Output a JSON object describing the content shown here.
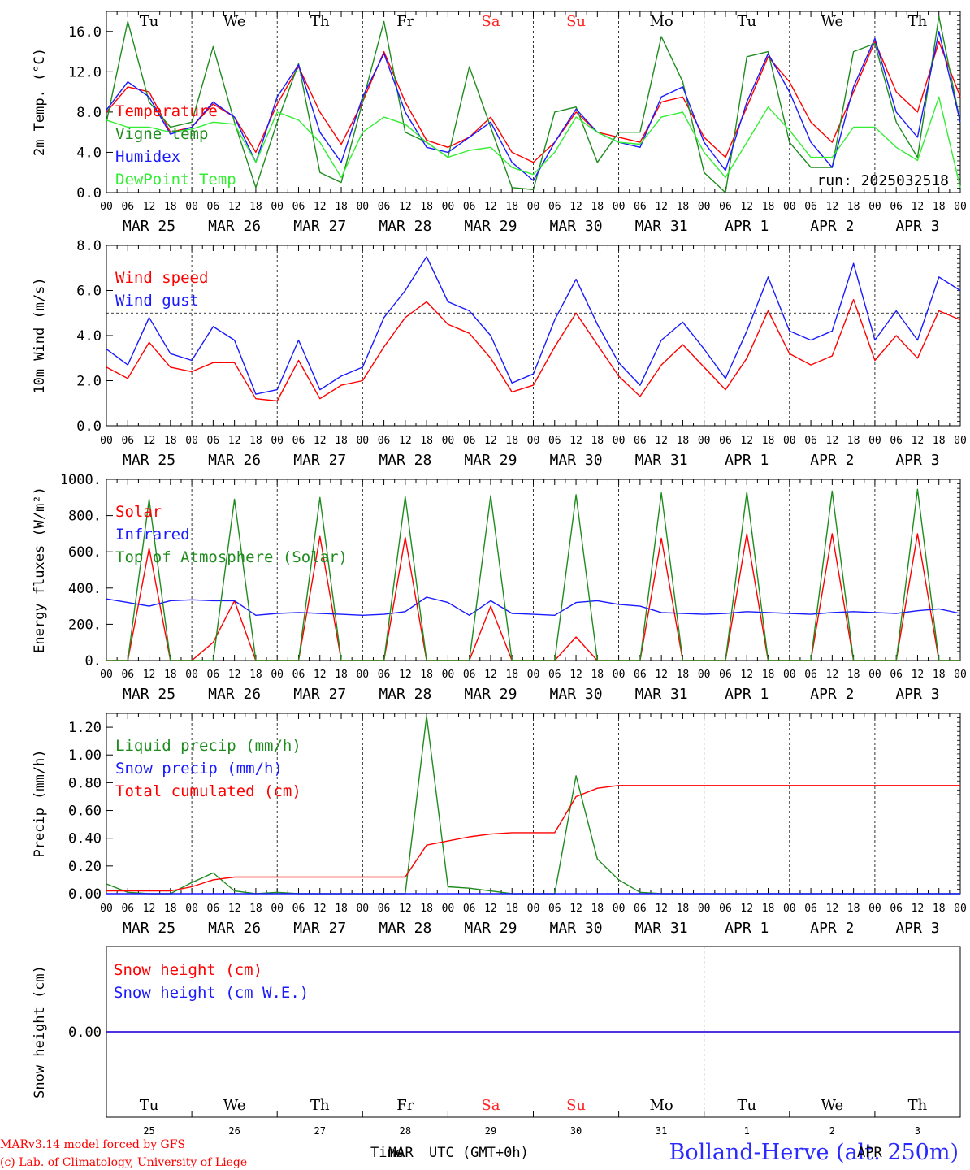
{
  "footer": {
    "model_line": "MARv3.14 model forced by GFS",
    "lab_line": "(c) Lab. of Climatology, University of Liege",
    "x_title_a": "Time",
    "x_title_b": "MAR",
    "x_title_c": "UTC (GMT+0h)",
    "station": "Bolland-Herve (alt. 250m)",
    "apr_overlay": "APR"
  },
  "timeline": {
    "hour_ticks": [
      "00",
      "06",
      "12",
      "18"
    ],
    "dates": [
      "MAR 25",
      "MAR 26",
      "MAR 27",
      "MAR 28",
      "MAR 29",
      "MAR 30",
      "MAR 31",
      "APR  1",
      "APR  2",
      "APR  3"
    ],
    "day_numbers": [
      "25",
      "26",
      "27",
      "28",
      "29",
      "30",
      "31",
      "1",
      "2",
      "3"
    ],
    "weekdays": [
      "Tu",
      "We",
      "Th",
      "Fr",
      "Sa",
      "Su",
      "Mo",
      "Tu",
      "We",
      "Th"
    ],
    "weekend_color": "#ff2020",
    "weekday_color": "#000000",
    "weekend_days": [
      "Sa",
      "Su"
    ]
  },
  "chart_data": [
    {
      "id": "temp",
      "type": "line",
      "ylabel": "2m Temp. (°C)",
      "ylim": [
        0,
        18
      ],
      "yticks": [
        "0.0",
        "4.0",
        "8.0",
        "12.0",
        "16.0"
      ],
      "annotation": "run: 2025032518",
      "x_hours": [
        0,
        6,
        12,
        18,
        24,
        30,
        36,
        42,
        48,
        54,
        60,
        66,
        72,
        78,
        84,
        90,
        96,
        102,
        108,
        114,
        120,
        126,
        132,
        138,
        144,
        150,
        156,
        162,
        168,
        174,
        180,
        186,
        192,
        198,
        204,
        210,
        216,
        222,
        228,
        234,
        240
      ],
      "series": [
        {
          "name": "Temperature",
          "color": "#ff0000",
          "values": [
            8.0,
            10.5,
            10.0,
            6.0,
            6.5,
            8.8,
            7.5,
            4.0,
            8.8,
            12.5,
            8.0,
            4.8,
            9.0,
            14.0,
            9.0,
            5.2,
            4.5,
            5.5,
            7.5,
            4.0,
            3.0,
            5.0,
            8.0,
            6.0,
            5.5,
            5.0,
            9.0,
            9.5,
            5.5,
            3.5,
            8.5,
            13.5,
            11.0,
            7.0,
            5.0,
            10.0,
            15.0,
            10.0,
            8.0,
            15.0,
            9.5
          ]
        },
        {
          "name": "Vigne temp",
          "color": "#1e8c1e",
          "values": [
            7.0,
            17.0,
            9.0,
            6.5,
            7.0,
            14.5,
            7.0,
            0.5,
            7.0,
            12.8,
            2.0,
            1.0,
            9.0,
            17.0,
            6.0,
            5.0,
            3.5,
            12.5,
            6.5,
            0.5,
            0.3,
            8.0,
            8.5,
            3.0,
            6.0,
            6.0,
            15.5,
            11.0,
            2.0,
            0.0,
            13.5,
            14.0,
            5.0,
            2.5,
            2.5,
            14.0,
            14.8,
            7.0,
            3.5,
            17.5,
            7.0
          ]
        },
        {
          "name": "Humidex",
          "color": "#1a1aff",
          "values": [
            8.2,
            11.0,
            9.5,
            5.8,
            6.5,
            9.0,
            7.5,
            3.0,
            9.5,
            12.7,
            6.0,
            3.0,
            9.5,
            13.8,
            8.0,
            4.5,
            4.0,
            5.5,
            7.0,
            3.0,
            1.2,
            5.0,
            8.3,
            6.0,
            5.0,
            4.5,
            9.5,
            10.5,
            5.0,
            2.2,
            9.0,
            13.8,
            10.0,
            5.0,
            2.5,
            10.5,
            15.3,
            8.0,
            5.5,
            16.0,
            7.0
          ]
        },
        {
          "name": "DewPoint Temp",
          "color": "#33ee33",
          "values": [
            7.2,
            6.5,
            6.5,
            6.0,
            6.3,
            7.0,
            6.8,
            3.0,
            8.0,
            7.2,
            5.0,
            1.5,
            6.0,
            7.5,
            6.8,
            5.0,
            3.5,
            4.2,
            4.5,
            2.5,
            1.8,
            4.0,
            7.5,
            6.0,
            5.0,
            4.8,
            7.5,
            8.0,
            4.0,
            1.5,
            5.0,
            8.5,
            6.2,
            3.5,
            3.5,
            6.5,
            6.5,
            4.5,
            3.2,
            9.5,
            0.5
          ]
        }
      ]
    },
    {
      "id": "wind",
      "type": "line",
      "ylabel": "10m Wind (m/s)",
      "ylim": [
        0,
        8
      ],
      "yticks": [
        "0.0",
        "2.0",
        "4.0",
        "6.0",
        "8.0"
      ],
      "reference_line": 5.0,
      "x_hours": [
        0,
        6,
        12,
        18,
        24,
        30,
        36,
        42,
        48,
        54,
        60,
        66,
        72,
        78,
        84,
        90,
        96,
        102,
        108,
        114,
        120,
        126,
        132,
        138,
        144,
        150,
        156,
        162,
        168,
        174,
        180,
        186,
        192,
        198,
        204,
        210,
        216,
        222,
        228,
        234,
        240
      ],
      "series": [
        {
          "name": "Wind speed",
          "color": "#ff0000",
          "values": [
            2.6,
            2.1,
            3.7,
            2.6,
            2.4,
            2.8,
            2.8,
            1.2,
            1.1,
            2.9,
            1.2,
            1.8,
            2.0,
            3.5,
            4.8,
            5.5,
            4.5,
            4.1,
            3.0,
            1.5,
            1.8,
            3.5,
            5.0,
            3.6,
            2.2,
            1.3,
            2.7,
            3.6,
            2.6,
            1.6,
            3.0,
            5.1,
            3.2,
            2.7,
            3.1,
            5.6,
            2.9,
            4.0,
            3.0,
            5.1,
            4.7
          ]
        },
        {
          "name": "Wind gust",
          "color": "#1a1aff",
          "values": [
            3.4,
            2.7,
            4.8,
            3.2,
            2.9,
            4.4,
            3.8,
            1.4,
            1.6,
            3.8,
            1.6,
            2.2,
            2.6,
            4.8,
            6.0,
            7.5,
            5.5,
            5.1,
            4.0,
            1.9,
            2.3,
            4.7,
            6.5,
            4.5,
            2.8,
            1.8,
            3.8,
            4.6,
            3.4,
            2.1,
            4.2,
            6.6,
            4.2,
            3.8,
            4.2,
            7.2,
            3.8,
            5.1,
            3.8,
            6.6,
            6.0
          ]
        }
      ]
    },
    {
      "id": "energy",
      "type": "line",
      "ylabel": "Energy fluxes (W/m²)",
      "ylim": [
        0,
        1000
      ],
      "yticks": [
        "0.",
        "200.",
        "400.",
        "600.",
        "800.",
        "1000."
      ],
      "x_hours": [
        0,
        6,
        12,
        18,
        24,
        30,
        36,
        42,
        48,
        54,
        60,
        66,
        72,
        78,
        84,
        90,
        96,
        102,
        108,
        114,
        120,
        126,
        132,
        138,
        144,
        150,
        156,
        162,
        168,
        174,
        180,
        186,
        192,
        198,
        204,
        210,
        216,
        222,
        228,
        234,
        240
      ],
      "series": [
        {
          "name": "Solar",
          "color": "#ff0000",
          "values": [
            0,
            0,
            620,
            0,
            0,
            100,
            330,
            0,
            0,
            0,
            685,
            0,
            0,
            0,
            680,
            0,
            0,
            0,
            300,
            0,
            0,
            0,
            130,
            0,
            0,
            0,
            675,
            0,
            0,
            0,
            700,
            0,
            0,
            0,
            700,
            0,
            0,
            0,
            700,
            0,
            0
          ]
        },
        {
          "name": "Infrared",
          "color": "#1a1aff",
          "values": [
            340,
            320,
            300,
            330,
            335,
            330,
            330,
            250,
            260,
            265,
            260,
            255,
            250,
            255,
            270,
            350,
            320,
            250,
            330,
            260,
            255,
            250,
            320,
            330,
            310,
            300,
            265,
            260,
            255,
            260,
            270,
            265,
            260,
            255,
            265,
            270,
            265,
            260,
            275,
            285,
            260
          ]
        },
        {
          "name": "Top of Atmosphere (Solar)",
          "color": "#1e8c1e",
          "values": [
            0,
            0,
            890,
            0,
            0,
            0,
            890,
            0,
            0,
            0,
            900,
            0,
            0,
            0,
            905,
            0,
            0,
            0,
            910,
            0,
            0,
            0,
            915,
            0,
            0,
            0,
            925,
            0,
            0,
            0,
            930,
            0,
            0,
            0,
            935,
            0,
            0,
            0,
            945,
            0,
            0
          ]
        }
      ]
    },
    {
      "id": "precip",
      "type": "line",
      "ylabel": "Precip (mm/h)",
      "ylim": [
        0,
        1.3
      ],
      "yticks": [
        "0.00",
        "0.20",
        "0.40",
        "0.60",
        "0.80",
        "1.00",
        "1.20"
      ],
      "x_hours": [
        0,
        6,
        12,
        18,
        24,
        30,
        36,
        42,
        48,
        54,
        60,
        66,
        72,
        78,
        84,
        90,
        96,
        102,
        108,
        114,
        120,
        126,
        132,
        138,
        144,
        150,
        156,
        162,
        168,
        174,
        180,
        186,
        192,
        198,
        204,
        210,
        216,
        222,
        228,
        234,
        240
      ],
      "series": [
        {
          "name": "Liquid precip (mm/h)",
          "color": "#1e8c1e",
          "values": [
            0.07,
            0.01,
            0.0,
            0.0,
            0.08,
            0.15,
            0.02,
            0.0,
            0.01,
            0.0,
            0.0,
            0.0,
            0.0,
            0.0,
            0.0,
            1.28,
            0.05,
            0.04,
            0.02,
            0.0,
            0.0,
            0.0,
            0.85,
            0.25,
            0.1,
            0.01,
            0.0,
            0.0,
            0.0,
            0.0,
            0.0,
            0.0,
            0.0,
            0.0,
            0.0,
            0.0,
            0.0,
            0.0,
            0.0,
            0.0,
            0.0
          ]
        },
        {
          "name": "Snow precip (mm/h)",
          "color": "#1a1aff",
          "values": [
            0,
            0,
            0,
            0,
            0,
            0,
            0,
            0,
            0,
            0,
            0,
            0,
            0,
            0,
            0,
            0,
            0,
            0,
            0,
            0,
            0,
            0,
            0,
            0,
            0,
            0,
            0,
            0,
            0,
            0,
            0,
            0,
            0,
            0,
            0,
            0,
            0,
            0,
            0,
            0,
            0
          ]
        },
        {
          "name": "Total cumulated (cm)",
          "color": "#ff0000",
          "values": [
            0.02,
            0.02,
            0.02,
            0.02,
            0.05,
            0.1,
            0.12,
            0.12,
            0.12,
            0.12,
            0.12,
            0.12,
            0.12,
            0.12,
            0.12,
            0.35,
            0.38,
            0.41,
            0.43,
            0.44,
            0.44,
            0.44,
            0.7,
            0.76,
            0.78,
            0.78,
            0.78,
            0.78,
            0.78,
            0.78,
            0.78,
            0.78,
            0.78,
            0.78,
            0.78,
            0.78,
            0.78,
            0.78,
            0.78,
            0.78,
            0.78
          ]
        }
      ]
    },
    {
      "id": "snow",
      "type": "line",
      "ylabel": "Snow height (cm)",
      "ylim": [
        -1,
        1
      ],
      "yticks": [
        "0.00"
      ],
      "series": [
        {
          "name": "Snow height (cm)",
          "color": "#ff0000",
          "values": [
            0,
            0
          ]
        },
        {
          "name": "Snow height (cm W.E.)",
          "color": "#1a1aff",
          "values": [
            0,
            0
          ]
        }
      ]
    }
  ]
}
